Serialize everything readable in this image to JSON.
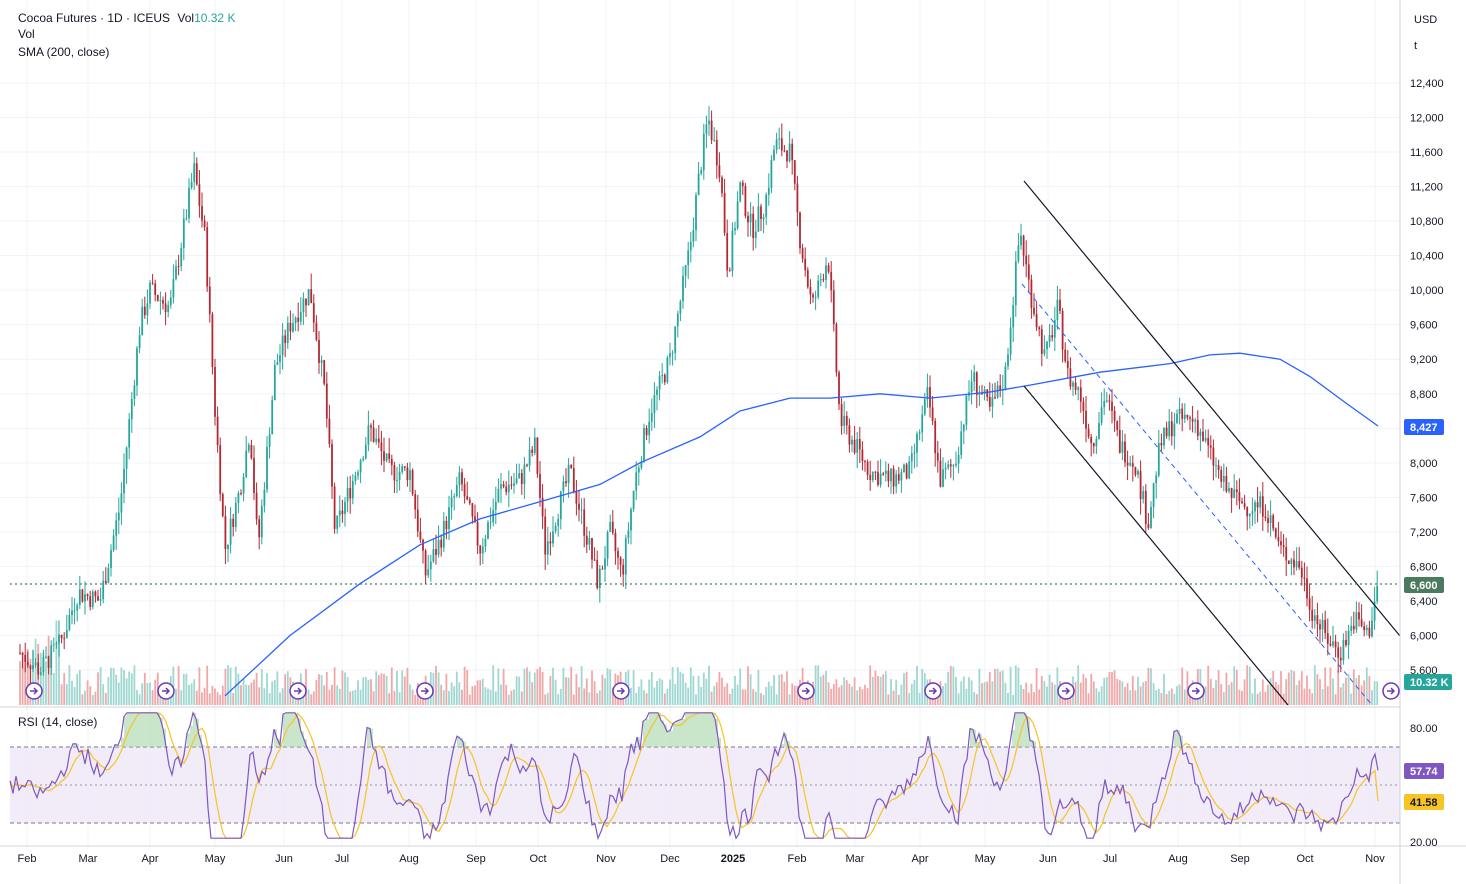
{
  "legend": {
    "symbol": "Cocoa Futures · 1D · ICEUS",
    "vol_label": "Vol",
    "vol_value": "10.32 K",
    "line2": "Vol",
    "line3": "SMA (200, close)",
    "rsi": "RSI (14, close)"
  },
  "axis": {
    "currency": "USD",
    "unit": "t",
    "price_ticks": [
      "12,400",
      "12,000",
      "11,600",
      "11,200",
      "10,800",
      "10,400",
      "10,000",
      "9,600",
      "9,200",
      "8,800",
      "8,000",
      "7,600",
      "7,200",
      "6,800",
      "6,400",
      "6,000",
      "5,600"
    ],
    "rsi_ticks": [
      "80.00",
      "20.00"
    ],
    "months": [
      "Feb",
      "Mar",
      "Apr",
      "May",
      "Jun",
      "Jul",
      "Aug",
      "Sep",
      "Oct",
      "Nov",
      "Dec",
      "2025",
      "Feb",
      "Mar",
      "Apr",
      "May",
      "Jun",
      "Jul",
      "Aug",
      "Sep",
      "Oct",
      "Nov"
    ]
  },
  "tags": {
    "sma": "8,427",
    "last": "6,600",
    "volume": "10.32 K",
    "rsi": "57.74",
    "rsi_ma": "41.58"
  },
  "colors": {
    "up": "#26a69a",
    "down": "#b22833",
    "sma": "#2962ff",
    "rsi": "#7e57c2",
    "rsi_ma": "#f7c325",
    "last_tag": "#4b7a5e",
    "text": "#131722"
  },
  "chart_data": [
    {
      "type": "candlestick",
      "title": "Cocoa Futures · 1D · ICEUS",
      "ylim": [
        5450,
        12750
      ],
      "price_axis_ticks": [
        5600,
        6000,
        6400,
        6800,
        7200,
        7600,
        8000,
        8800,
        9200,
        9600,
        10000,
        10400,
        10800,
        11200,
        11600,
        12000,
        12400
      ],
      "x": [
        "2024-02",
        "2024-03",
        "2024-04",
        "2024-05",
        "2024-06",
        "2024-07",
        "2024-08",
        "2024-09",
        "2024-10",
        "2024-11",
        "2024-12",
        "2025-01",
        "2025-02",
        "2025-03",
        "2025-04",
        "2025-05",
        "2025-06",
        "2025-07",
        "2025-08",
        "2025-09",
        "2025-10",
        "2025-11"
      ],
      "series": [
        {
          "name": "Cocoa Futures",
          "close_path": [
            5700,
            6500,
            10000,
            11500,
            7000,
            9800,
            8000,
            7200,
            7800,
            7000,
            10500,
            11800,
            10800,
            8000,
            7700,
            10900,
            9200,
            7500,
            8500,
            7800,
            5900,
            6600
          ]
        },
        {
          "name": "SMA (200, close)",
          "values": [
            null,
            null,
            null,
            null,
            5300,
            6000,
            6700,
            7100,
            7500,
            7700,
            8100,
            8600,
            8700,
            8750,
            8800,
            8900,
            9050,
            9100,
            9200,
            9250,
            8800,
            8427
          ]
        }
      ],
      "last_price": 6600,
      "sma_last": 8427,
      "last_volume": "10.32 K"
    },
    {
      "type": "line",
      "title": "RSI (14, close)",
      "ylim": [
        20,
        90
      ],
      "bands": [
        30,
        70
      ],
      "x": [
        "2024-02",
        "2024-03",
        "2024-04",
        "2024-05",
        "2024-06",
        "2024-07",
        "2024-08",
        "2024-09",
        "2024-10",
        "2024-11",
        "2024-12",
        "2025-01",
        "2025-02",
        "2025-03",
        "2025-04",
        "2025-05",
        "2025-06",
        "2025-07",
        "2025-08",
        "2025-09",
        "2025-10",
        "2025-11"
      ],
      "series": [
        {
          "name": "RSI",
          "values": [
            62,
            73,
            78,
            40,
            58,
            45,
            45,
            48,
            52,
            50,
            75,
            65,
            50,
            40,
            42,
            72,
            48,
            43,
            52,
            40,
            30,
            57.74
          ]
        },
        {
          "name": "RSI-based MA",
          "values": [
            60,
            68,
            70,
            48,
            52,
            48,
            47,
            48,
            50,
            50,
            68,
            62,
            52,
            42,
            42,
            60,
            52,
            45,
            50,
            43,
            33,
            41.58
          ]
        }
      ]
    }
  ]
}
